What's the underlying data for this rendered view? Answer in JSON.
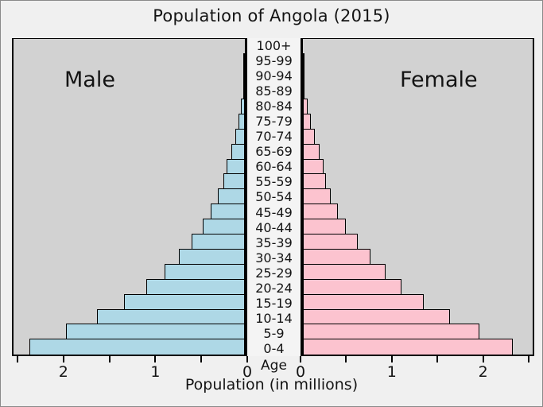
{
  "title": "Population of Angola (2015)",
  "chart_data": {
    "type": "bar",
    "subtype": "population-pyramid",
    "title": "Population of Angola (2015)",
    "xlabel": "Population (in millions)",
    "center_axis_label": "Age",
    "age_groups_top_to_bottom": [
      "100+",
      "95-99",
      "90-94",
      "85-89",
      "80-84",
      "75-79",
      "70-74",
      "65-69",
      "60-64",
      "55-59",
      "50-54",
      "45-49",
      "40-44",
      "35-39",
      "30-34",
      "25-29",
      "20-24",
      "15-19",
      "10-14",
      "5-9",
      "0-4"
    ],
    "series": [
      {
        "name": "Male",
        "side": "left",
        "color": "#aed8e6",
        "values_top_to_bottom": [
          0.0,
          0.001,
          0.003,
          0.013,
          0.04,
          0.07,
          0.11,
          0.15,
          0.2,
          0.24,
          0.3,
          0.38,
          0.47,
          0.59,
          0.73,
          0.89,
          1.09,
          1.34,
          1.64,
          1.98,
          2.38
        ]
      },
      {
        "name": "Female",
        "side": "right",
        "color": "#fcc3cf",
        "values_top_to_bottom": [
          0.0,
          0.002,
          0.006,
          0.02,
          0.05,
          0.09,
          0.13,
          0.19,
          0.23,
          0.26,
          0.31,
          0.39,
          0.48,
          0.61,
          0.75,
          0.92,
          1.1,
          1.35,
          1.64,
          1.97,
          2.34
        ]
      }
    ],
    "xlim": [
      0,
      2.56
    ],
    "x_ticks": [
      {
        "value": 0,
        "label": "0"
      },
      {
        "value": 0.5,
        "label": ""
      },
      {
        "value": 1,
        "label": "1"
      },
      {
        "value": 1.5,
        "label": ""
      },
      {
        "value": 2,
        "label": "2"
      },
      {
        "value": 2.5,
        "label": ""
      }
    ],
    "legend_position": "in-panel-top",
    "grid": false,
    "colors": {
      "figure_bg": "#f0f0f0",
      "panel_bg": "#d2d2d2",
      "bar_edge": "#000000",
      "male_fill": "#aed8e6",
      "female_fill": "#fcc3cf"
    }
  }
}
